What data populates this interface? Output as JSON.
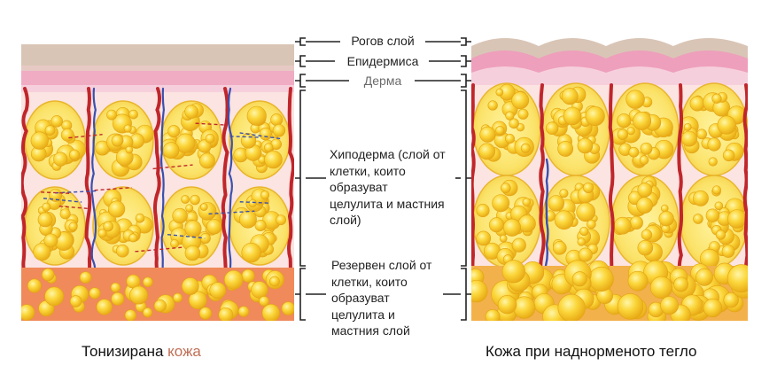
{
  "labels": {
    "stratum_corneum": "Рогов слой",
    "epidermis": "Епидермиса",
    "dermis": "Дерма",
    "hypodermis": [
      "Хиподерма (слой от",
      "клетки, които",
      "образуват",
      "целулита и мастния",
      "слой)"
    ],
    "reserve": [
      "Резервен слой от",
      "клетки, които",
      "образуват",
      "целулита и",
      "мастния слой"
    ]
  },
  "captions": {
    "toned_part1": "Тонизирана",
    "toned_part2": "кожа",
    "overweight": "Кожа при наднорменото тегло"
  },
  "colors": {
    "horn": "#d6c2b2",
    "epidermis": "#f2b4c8",
    "dermis": "#f8d8e2",
    "hypo_bg": "#fbe3e0",
    "fat": "#f6c21a",
    "fat_light": "#fff07a",
    "vein_red": "#c0262b",
    "vein_blue": "#3a4fb0",
    "reserve_bg": "#f08a5a",
    "bracket": "#222222"
  }
}
